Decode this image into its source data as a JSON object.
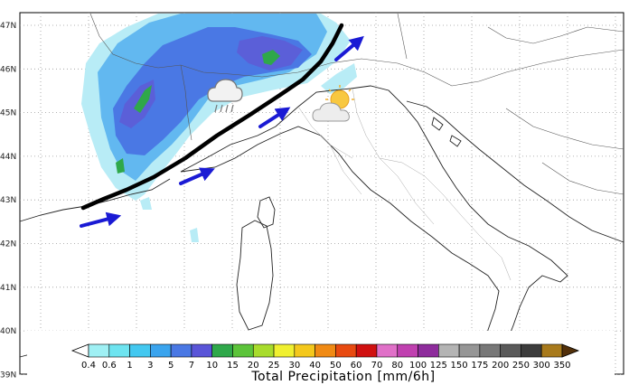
{
  "map": {
    "lat_labels": [
      "47N",
      "46N",
      "45N",
      "44N",
      "43N",
      "42N",
      "41N",
      "40N",
      "39N"
    ],
    "arrows": [
      "wind-flow-arrow",
      "wind-flow-arrow",
      "wind-flow-arrow",
      "wind-flow-arrow"
    ],
    "icons": {
      "rain": "rain-cloud-icon",
      "sun": "sun-cloud-icon"
    },
    "front_line": "convergence-line"
  },
  "colorbar": {
    "title": "Total Precipitation [mm/6h]",
    "labels": [
      "0.4",
      "0.6",
      "1",
      "3",
      "5",
      "7",
      "10",
      "15",
      "20",
      "25",
      "30",
      "40",
      "50",
      "60",
      "70",
      "80",
      "100",
      "125",
      "150",
      "175",
      "200",
      "250",
      "300",
      "350"
    ],
    "colors": [
      "#ffffff",
      "#9ff0f4",
      "#6ee4f0",
      "#43c8f0",
      "#3aa4ee",
      "#4a78e4",
      "#5a55d8",
      "#2fa84a",
      "#5cc43a",
      "#a8dc2c",
      "#f0f030",
      "#f4c81c",
      "#f08a14",
      "#e84a10",
      "#d01010",
      "#e070c8",
      "#c040b0",
      "#8e2c9c",
      "#b4b4b4",
      "#969696",
      "#787878",
      "#5a5a5a",
      "#3c3c3c",
      "#a87a1c",
      "#8a5c16",
      "#6e4410",
      "#52300a"
    ],
    "rain_colors": {
      "light": "#b8ecf6",
      "medium": "#62b8f0",
      "heavy": "#4a78e4",
      "core": "#5b5fd8",
      "intense": "#2fa84a"
    }
  }
}
